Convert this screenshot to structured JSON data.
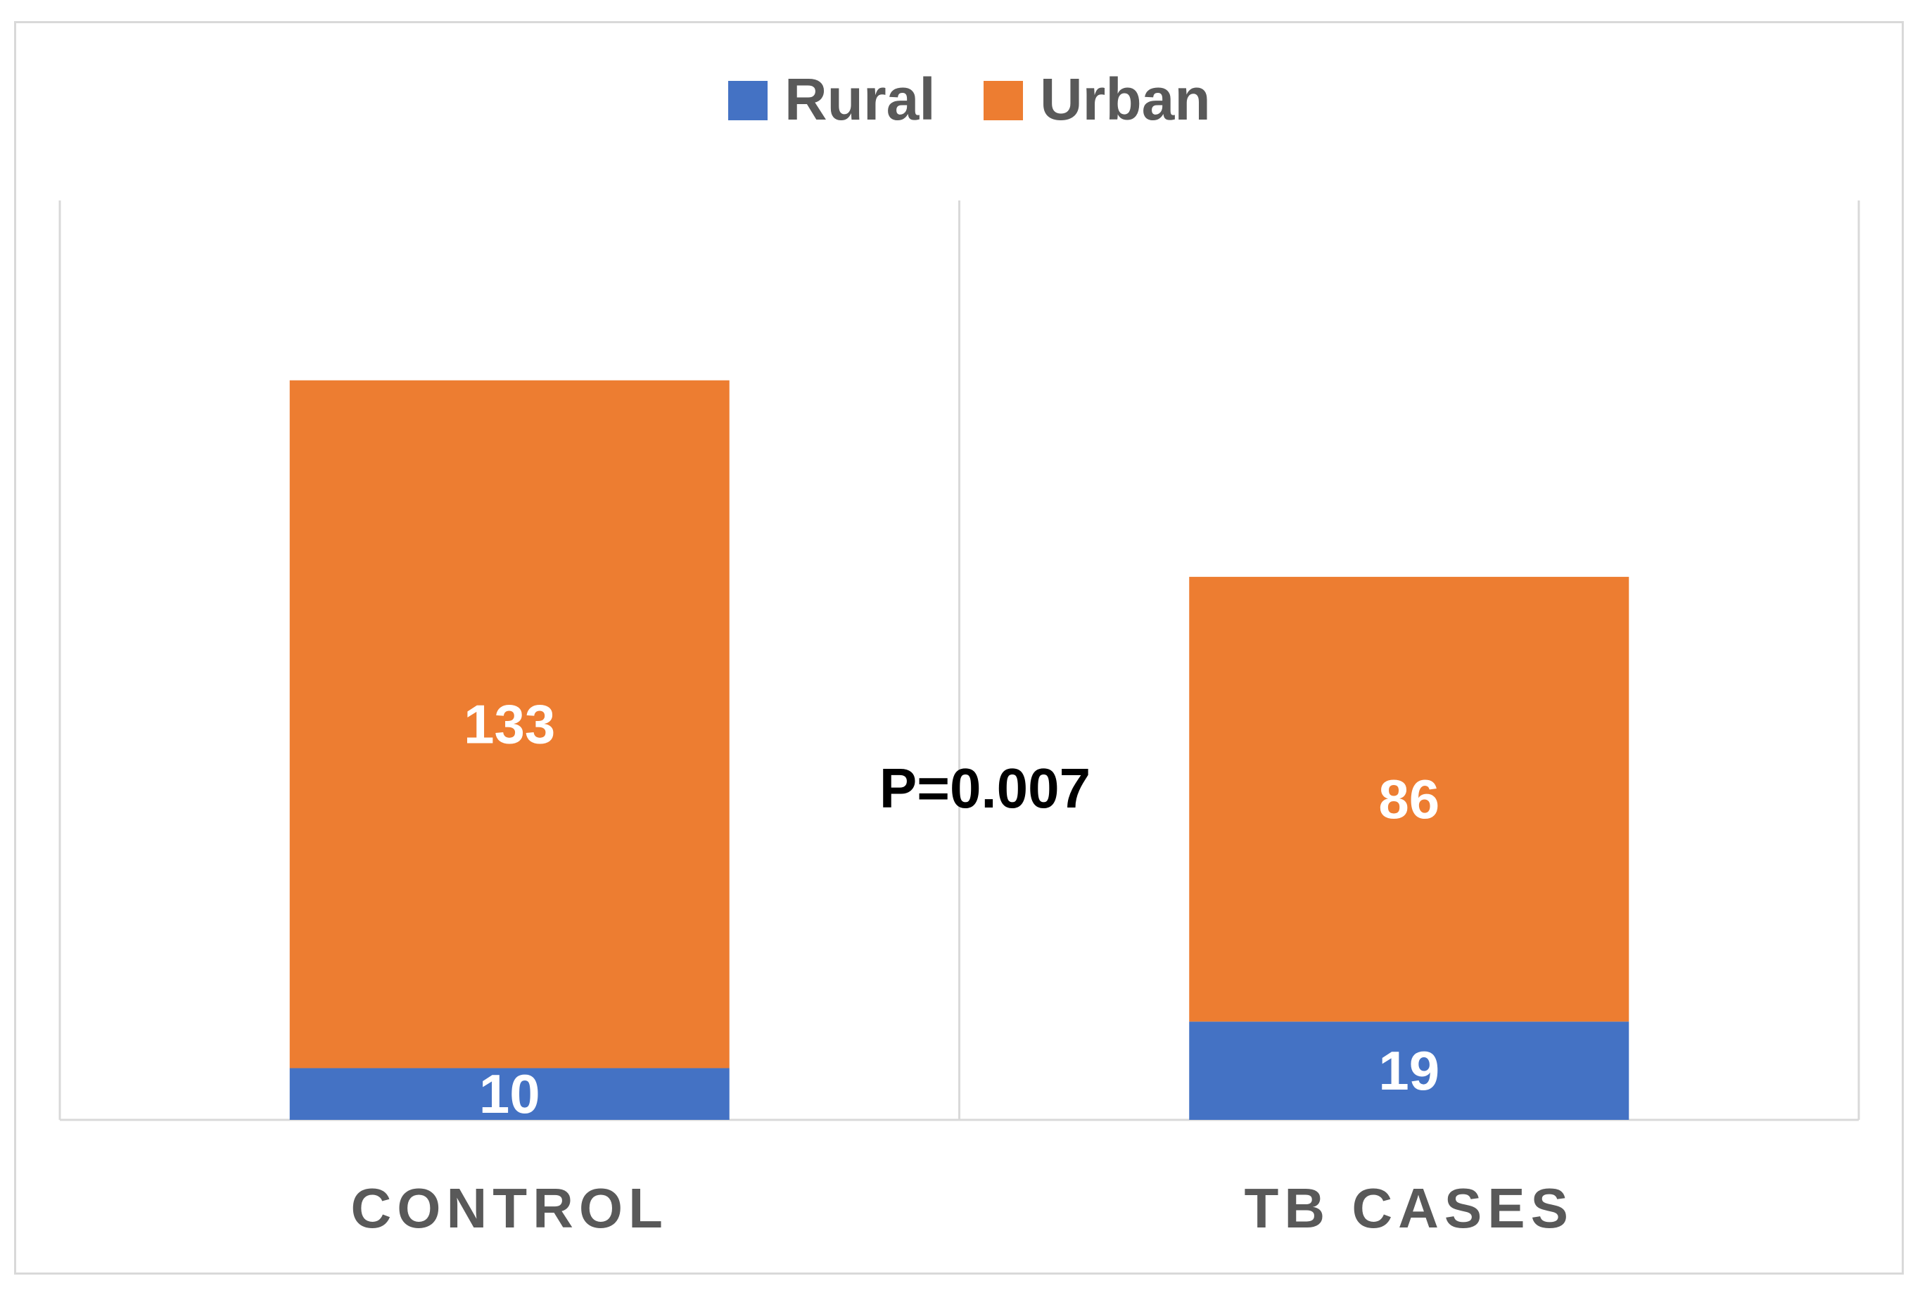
{
  "chart_data": {
    "type": "bar",
    "stacked": true,
    "categories": [
      "CONTROL",
      "TB CASES"
    ],
    "series": [
      {
        "name": "Rural",
        "values": [
          10,
          19
        ],
        "color": "#4472c4"
      },
      {
        "name": "Urban",
        "values": [
          133,
          86
        ],
        "color": "#ed7d31"
      }
    ],
    "ylim": [
      0,
      160
    ],
    "grid": false,
    "legend_position": "top",
    "annotation": "P=0.007"
  }
}
